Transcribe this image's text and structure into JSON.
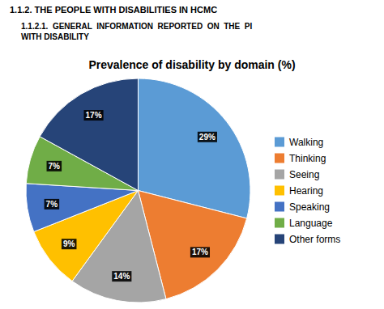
{
  "chart_data": {
    "type": "pie",
    "title": "Prevalence of disability by domain (%)",
    "annotations": [
      "1.1.2. THE PEOPLE WITH DISABILITIES IN HCMC",
      "1.1.2.1.  GENERAL  INFORMATION  REPORTED  ON  THE  PI\nWITH DISABILITY"
    ],
    "categories": [
      "Walking",
      "Thinking",
      "Seeing",
      "Hearing",
      "Speaking",
      "Language",
      "Other forms"
    ],
    "values": [
      29,
      17,
      14,
      9,
      7,
      7,
      17
    ],
    "value_labels": [
      "29%",
      "17%",
      "14%",
      "9%",
      "7%",
      "7%",
      "17%"
    ],
    "colors": [
      "#5B9BD5",
      "#ED7D31",
      "#A5A5A5",
      "#FFC000",
      "#4472C4",
      "#70AD47",
      "#264478"
    ],
    "data_labels": true,
    "legend": "right"
  }
}
